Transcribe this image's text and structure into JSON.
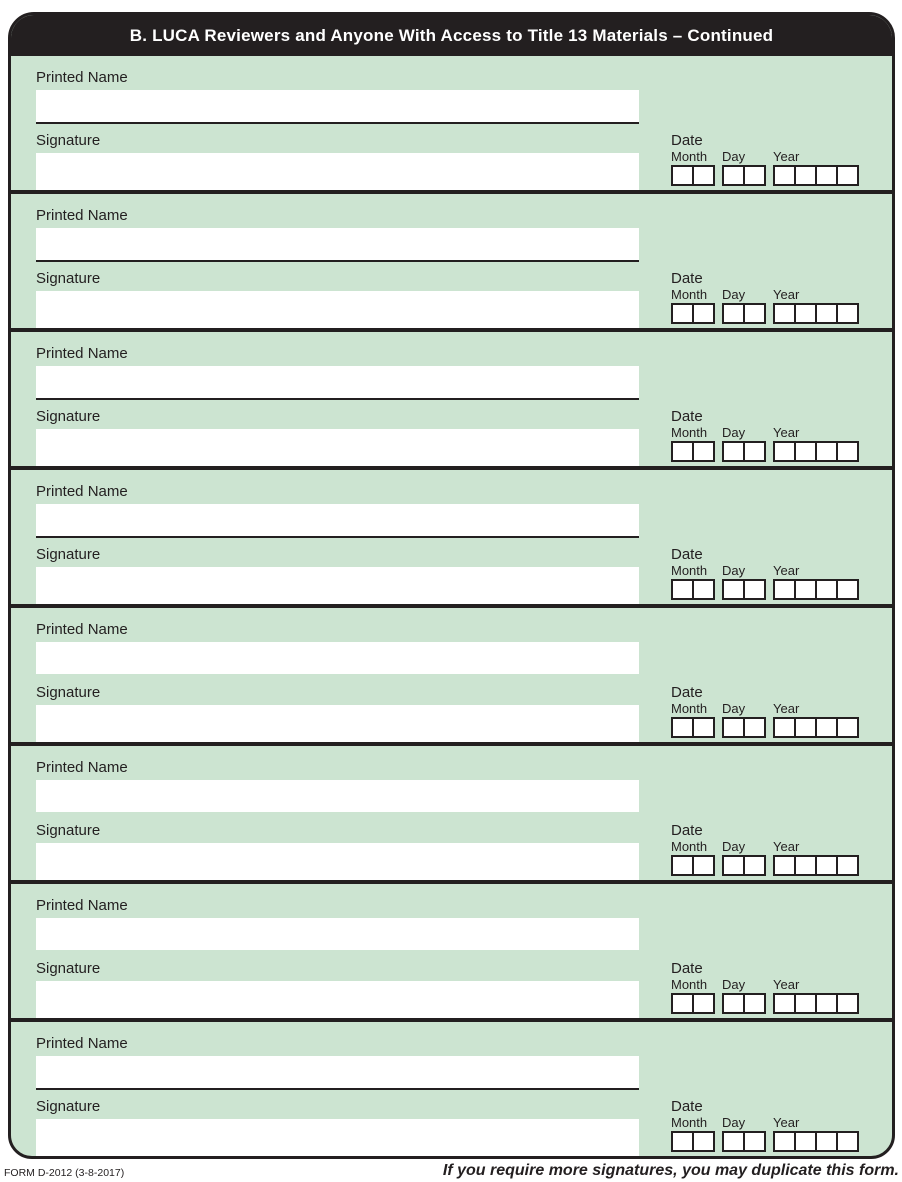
{
  "header": {
    "title": "B. LUCA Reviewers and Anyone With Access to Title 13 Materials – Continued"
  },
  "labels": {
    "printed_name": "Printed Name",
    "signature": "Signature",
    "date": "Date",
    "month": "Month",
    "day": "Day",
    "year": "Year"
  },
  "date_format": {
    "month_digits": 2,
    "day_digits": 2,
    "year_digits": 4
  },
  "blocks": [
    {
      "index": 1,
      "printed_name_value": "",
      "signature_value": "",
      "month_value": "",
      "day_value": "",
      "year_value": "",
      "printed_name_underline": true
    },
    {
      "index": 2,
      "printed_name_value": "",
      "signature_value": "",
      "month_value": "",
      "day_value": "",
      "year_value": "",
      "printed_name_underline": true
    },
    {
      "index": 3,
      "printed_name_value": "",
      "signature_value": "",
      "month_value": "",
      "day_value": "",
      "year_value": "",
      "printed_name_underline": true
    },
    {
      "index": 4,
      "printed_name_value": "",
      "signature_value": "",
      "month_value": "",
      "day_value": "",
      "year_value": "",
      "printed_name_underline": true
    },
    {
      "index": 5,
      "printed_name_value": "",
      "signature_value": "",
      "month_value": "",
      "day_value": "",
      "year_value": "",
      "printed_name_underline": false
    },
    {
      "index": 6,
      "printed_name_value": "",
      "signature_value": "",
      "month_value": "",
      "day_value": "",
      "year_value": "",
      "printed_name_underline": false
    },
    {
      "index": 7,
      "printed_name_value": "",
      "signature_value": "",
      "month_value": "",
      "day_value": "",
      "year_value": "",
      "printed_name_underline": false
    },
    {
      "index": 8,
      "printed_name_value": "",
      "signature_value": "",
      "month_value": "",
      "day_value": "",
      "year_value": "",
      "printed_name_underline": true
    }
  ],
  "footer": {
    "form_number": "FORM D-2012 (3-8-2017)",
    "note": "If you require more signatures, you may duplicate this form."
  },
  "colors": {
    "body_green": "#cce4d1",
    "ink_black": "#231f20",
    "field_white": "#ffffff",
    "header_text": "#ffffff"
  }
}
